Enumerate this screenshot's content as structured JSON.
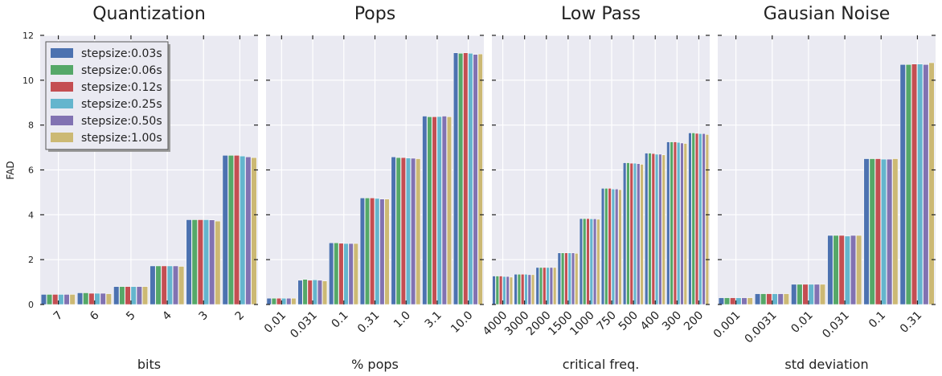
{
  "figure": {
    "ylabel": "FAD",
    "ylim": [
      0,
      12
    ],
    "yticks": [
      0,
      2,
      4,
      6,
      8,
      10,
      12
    ],
    "background": "#eaeaf2",
    "grid": true,
    "legend_placement": "top-left (first panel)"
  },
  "legend": [
    {
      "label": "stepsize:0.03s",
      "color": "#4c72b0"
    },
    {
      "label": "stepsize:0.06s",
      "color": "#55a868"
    },
    {
      "label": "stepsize:0.12s",
      "color": "#c44e52"
    },
    {
      "label": "stepsize:0.25s",
      "color": "#64b5cd"
    },
    {
      "label": "stepsize:0.50s",
      "color": "#8172b2"
    },
    {
      "label": "stepsize:1.00s",
      "color": "#ccb974"
    }
  ],
  "chart_data": [
    {
      "type": "bar",
      "title": "Quantization",
      "xlabel": "bits",
      "ylabel": "FAD",
      "ylim": [
        0,
        12
      ],
      "tick_rotation": 45,
      "categories": [
        "7",
        "6",
        "5",
        "4",
        "3",
        "2"
      ],
      "series": [
        {
          "name": "stepsize:0.03s",
          "values": [
            0.45,
            0.52,
            0.8,
            1.72,
            3.78,
            6.65
          ]
        },
        {
          "name": "stepsize:0.06s",
          "values": [
            0.45,
            0.52,
            0.8,
            1.72,
            3.78,
            6.65
          ]
        },
        {
          "name": "stepsize:0.12s",
          "values": [
            0.45,
            0.5,
            0.8,
            1.72,
            3.78,
            6.65
          ]
        },
        {
          "name": "stepsize:0.25s",
          "values": [
            0.45,
            0.5,
            0.8,
            1.72,
            3.78,
            6.62
          ]
        },
        {
          "name": "stepsize:0.50s",
          "values": [
            0.45,
            0.5,
            0.8,
            1.72,
            3.77,
            6.58
          ]
        },
        {
          "name": "stepsize:1.00s",
          "values": [
            0.45,
            0.48,
            0.8,
            1.7,
            3.72,
            6.55
          ]
        }
      ]
    },
    {
      "type": "bar",
      "title": "Pops",
      "xlabel": "% pops",
      "ylim": [
        0,
        12
      ],
      "tick_rotation": 45,
      "categories": [
        "0.01",
        "0.031",
        "0.1",
        "0.31",
        "1.0",
        "3.1",
        "10.0"
      ],
      "series": [
        {
          "name": "stepsize:0.03s",
          "values": [
            0.28,
            1.08,
            2.75,
            4.75,
            6.58,
            8.4,
            11.22
          ]
        },
        {
          "name": "stepsize:0.06s",
          "values": [
            0.28,
            1.12,
            2.75,
            4.75,
            6.55,
            8.37,
            11.2
          ]
        },
        {
          "name": "stepsize:0.12s",
          "values": [
            0.28,
            1.08,
            2.73,
            4.75,
            6.55,
            8.37,
            11.22
          ]
        },
        {
          "name": "stepsize:0.25s",
          "values": [
            0.28,
            1.1,
            2.72,
            4.73,
            6.53,
            8.38,
            11.2
          ]
        },
        {
          "name": "stepsize:0.50s",
          "values": [
            0.28,
            1.08,
            2.72,
            4.7,
            6.52,
            8.4,
            11.15
          ]
        },
        {
          "name": "stepsize:1.00s",
          "values": [
            0.28,
            1.05,
            2.72,
            4.7,
            6.5,
            8.37,
            11.17
          ]
        }
      ]
    },
    {
      "type": "bar",
      "title": "Low Pass",
      "xlabel": "critical freq.",
      "ylim": [
        0,
        12
      ],
      "tick_rotation": 45,
      "categories": [
        "4000",
        "3000",
        "2000",
        "1500",
        "1000",
        "750",
        "500",
        "400",
        "300",
        "200"
      ],
      "series": [
        {
          "name": "stepsize:0.03s",
          "values": [
            1.27,
            1.35,
            1.65,
            2.3,
            3.83,
            5.18,
            6.32,
            6.75,
            7.25,
            7.65
          ]
        },
        {
          "name": "stepsize:0.06s",
          "values": [
            1.27,
            1.35,
            1.65,
            2.3,
            3.83,
            5.18,
            6.32,
            6.75,
            7.25,
            7.65
          ]
        },
        {
          "name": "stepsize:0.12s",
          "values": [
            1.27,
            1.35,
            1.65,
            2.3,
            3.83,
            5.18,
            6.3,
            6.73,
            7.25,
            7.63
          ]
        },
        {
          "name": "stepsize:0.25s",
          "values": [
            1.25,
            1.35,
            1.65,
            2.3,
            3.82,
            5.15,
            6.3,
            6.7,
            7.23,
            7.62
          ]
        },
        {
          "name": "stepsize:0.50s",
          "values": [
            1.25,
            1.33,
            1.65,
            2.3,
            3.82,
            5.15,
            6.28,
            6.7,
            7.2,
            7.62
          ]
        },
        {
          "name": "stepsize:1.00s",
          "values": [
            1.22,
            1.33,
            1.65,
            2.28,
            3.8,
            5.12,
            6.25,
            6.67,
            7.18,
            7.58
          ]
        }
      ]
    },
    {
      "type": "bar",
      "title": "Gausian Noise",
      "xlabel": "std deviation",
      "ylim": [
        0,
        12
      ],
      "tick_rotation": 45,
      "categories": [
        "0.001",
        "0.0031",
        "0.01",
        "0.031",
        "0.1",
        "0.31"
      ],
      "series": [
        {
          "name": "stepsize:0.03s",
          "values": [
            0.3,
            0.48,
            0.9,
            3.08,
            6.5,
            10.7
          ]
        },
        {
          "name": "stepsize:0.06s",
          "values": [
            0.3,
            0.48,
            0.9,
            3.08,
            6.5,
            10.7
          ]
        },
        {
          "name": "stepsize:0.12s",
          "values": [
            0.3,
            0.48,
            0.9,
            3.08,
            6.5,
            10.72
          ]
        },
        {
          "name": "stepsize:0.25s",
          "values": [
            0.3,
            0.48,
            0.9,
            3.05,
            6.48,
            10.72
          ]
        },
        {
          "name": "stepsize:0.50s",
          "values": [
            0.3,
            0.48,
            0.9,
            3.08,
            6.48,
            10.7
          ]
        },
        {
          "name": "stepsize:1.00s",
          "values": [
            0.3,
            0.48,
            0.9,
            3.08,
            6.5,
            10.78
          ]
        }
      ]
    }
  ]
}
